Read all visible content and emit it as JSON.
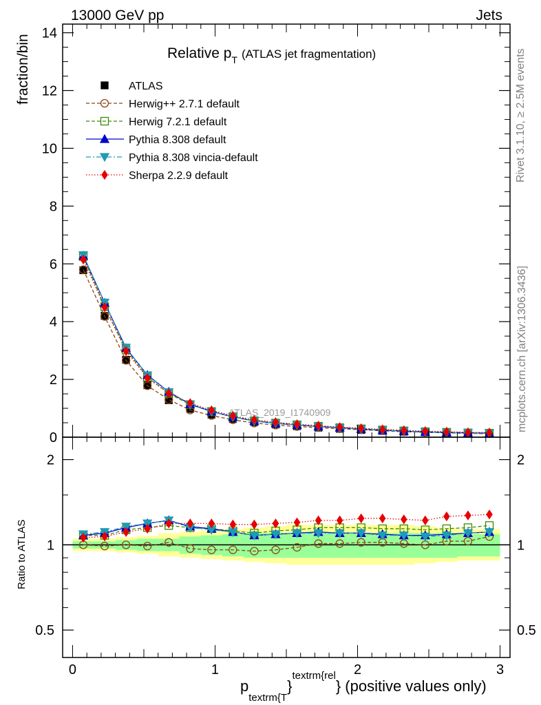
{
  "header": {
    "process": "13000 GeV pp",
    "category": "Jets",
    "rivet_info": "Rivet 3.1.10, ≥ 2.5M events",
    "mcplots_info": "mcplots.cern.ch [arXiv:1306.3436]",
    "analysis_id": "ATLAS_2019_I1740909"
  },
  "title": {
    "main": "Relative p",
    "sub": "T",
    "suffix": "(ATLAS jet fragmentation)"
  },
  "axes": {
    "top_ylabel": "fraction/bin",
    "bottom_ylabel": "Ratio to ATLAS",
    "xlabel_p": "p",
    "xlabel_sub": "textrm{T",
    "xlabel_brace": "}",
    "xlabel_sup": "textrm{rel",
    "xlabel_tail": "} (positive values only)"
  },
  "colors": {
    "atlas": "#000000",
    "herwigpp": "#8b4513",
    "herwig7": "#3a8a00",
    "pythia": "#0000cc",
    "vincia": "#1e9bb5",
    "sherpa": "#e80000",
    "band_yellow": "#ffff99",
    "band_green": "#99ff99"
  },
  "chart_data": [
    {
      "type": "line",
      "panel": "main",
      "title": "Relative pT (ATLAS jet fragmentation)",
      "xlabel": "p_T^rel (positive values only)",
      "ylabel": "fraction/bin",
      "xlim": [
        -0.07,
        3.07
      ],
      "ylim": [
        0,
        14.3
      ],
      "xticks": [
        0,
        1,
        2,
        3
      ],
      "yticks": [
        0,
        2,
        4,
        6,
        8,
        10,
        12,
        14
      ],
      "x": [
        0.075,
        0.225,
        0.375,
        0.525,
        0.675,
        0.825,
        0.975,
        1.125,
        1.275,
        1.425,
        1.575,
        1.725,
        1.875,
        2.025,
        2.175,
        2.325,
        2.475,
        2.625,
        2.775,
        2.925
      ],
      "series": [
        {
          "name": "ATLAS",
          "key": "atlas",
          "marker": "square",
          "values": [
            5.78,
            4.2,
            2.68,
            1.8,
            1.28,
            0.98,
            0.78,
            0.63,
            0.52,
            0.44,
            0.38,
            0.33,
            0.29,
            0.25,
            0.22,
            0.19,
            0.17,
            0.15,
            0.13,
            0.12
          ]
        },
        {
          "name": "Herwig++ 2.7.1 default",
          "key": "herwigpp",
          "marker": "circle",
          "values": [
            5.8,
            4.18,
            2.66,
            1.78,
            1.3,
            0.94,
            0.75,
            0.6,
            0.49,
            0.42,
            0.37,
            0.33,
            0.29,
            0.26,
            0.22,
            0.19,
            0.17,
            0.15,
            0.13,
            0.12
          ]
        },
        {
          "name": "Herwig 7.2.1 default",
          "key": "herwig7",
          "marker": "opensquare",
          "values": [
            6.25,
            4.52,
            3.02,
            2.08,
            1.51,
            1.13,
            0.89,
            0.71,
            0.57,
            0.49,
            0.43,
            0.38,
            0.33,
            0.29,
            0.25,
            0.22,
            0.19,
            0.17,
            0.15,
            0.14
          ]
        },
        {
          "name": "Pythia 8.308 default",
          "key": "pythia",
          "marker": "triangle",
          "values": [
            6.28,
            4.65,
            3.08,
            2.15,
            1.57,
            1.14,
            0.89,
            0.7,
            0.56,
            0.48,
            0.42,
            0.37,
            0.33,
            0.28,
            0.24,
            0.21,
            0.18,
            0.16,
            0.15,
            0.14
          ]
        },
        {
          "name": "Pythia 8.308 vincia-default",
          "key": "vincia",
          "marker": "invtriangle",
          "values": [
            6.3,
            4.66,
            3.1,
            2.14,
            1.56,
            1.13,
            0.88,
            0.7,
            0.56,
            0.48,
            0.42,
            0.37,
            0.32,
            0.28,
            0.24,
            0.21,
            0.18,
            0.16,
            0.15,
            0.13
          ]
        },
        {
          "name": "Sherpa 2.2.9 default",
          "key": "sherpa",
          "marker": "diamond",
          "values": [
            6.15,
            4.5,
            2.98,
            2.05,
            1.52,
            1.18,
            0.93,
            0.74,
            0.6,
            0.52,
            0.45,
            0.4,
            0.35,
            0.31,
            0.27,
            0.24,
            0.21,
            0.19,
            0.17,
            0.16
          ]
        }
      ]
    },
    {
      "type": "line",
      "panel": "ratio",
      "ylabel": "Ratio to ATLAS",
      "yscale": "log",
      "ylim": [
        0.4,
        2.4
      ],
      "yticks": [
        0.5,
        1,
        2
      ],
      "x": [
        0.075,
        0.225,
        0.375,
        0.525,
        0.675,
        0.825,
        0.975,
        1.125,
        1.275,
        1.425,
        1.575,
        1.725,
        1.875,
        2.025,
        2.175,
        2.325,
        2.475,
        2.625,
        2.775,
        2.925
      ],
      "band_green": {
        "lo": [
          0.97,
          0.97,
          0.96,
          0.95,
          0.95,
          0.93,
          0.92,
          0.91,
          0.9,
          0.9,
          0.9,
          0.9,
          0.9,
          0.9,
          0.9,
          0.9,
          0.9,
          0.9,
          0.91,
          0.91
        ],
        "hi": [
          1.03,
          1.03,
          1.04,
          1.05,
          1.05,
          1.07,
          1.08,
          1.09,
          1.1,
          1.1,
          1.1,
          1.1,
          1.1,
          1.1,
          1.1,
          1.1,
          1.1,
          1.1,
          1.09,
          1.09
        ]
      },
      "band_yellow": {
        "lo": [
          0.95,
          0.95,
          0.94,
          0.93,
          0.91,
          0.9,
          0.89,
          0.88,
          0.87,
          0.86,
          0.85,
          0.85,
          0.85,
          0.85,
          0.85,
          0.85,
          0.86,
          0.87,
          0.88,
          0.88
        ]
      },
      "series": [
        {
          "name": "Herwig++ 2.7.1 default",
          "key": "herwigpp",
          "marker": "circle",
          "values": [
            1.0,
            0.99,
            1.0,
            0.99,
            1.02,
            0.97,
            0.96,
            0.96,
            0.95,
            0.96,
            0.98,
            1.01,
            1.01,
            1.02,
            1.02,
            1.01,
            1.0,
            1.03,
            1.03,
            1.07
          ]
        },
        {
          "name": "Herwig 7.2.1 default",
          "key": "herwig7",
          "marker": "opensquare",
          "values": [
            1.08,
            1.08,
            1.13,
            1.15,
            1.17,
            1.15,
            1.14,
            1.12,
            1.1,
            1.12,
            1.13,
            1.15,
            1.15,
            1.15,
            1.14,
            1.14,
            1.13,
            1.14,
            1.15,
            1.17
          ]
        },
        {
          "name": "Pythia 8.308 default",
          "key": "pythia",
          "marker": "triangle",
          "values": [
            1.08,
            1.1,
            1.15,
            1.19,
            1.22,
            1.16,
            1.14,
            1.11,
            1.08,
            1.09,
            1.1,
            1.11,
            1.1,
            1.1,
            1.09,
            1.08,
            1.08,
            1.09,
            1.1,
            1.11
          ]
        },
        {
          "name": "Pythia 8.308 vincia-default",
          "key": "vincia",
          "marker": "invtriangle",
          "values": [
            1.09,
            1.11,
            1.16,
            1.19,
            1.22,
            1.15,
            1.13,
            1.11,
            1.08,
            1.09,
            1.1,
            1.1,
            1.1,
            1.1,
            1.08,
            1.08,
            1.07,
            1.08,
            1.1,
            1.11
          ]
        },
        {
          "name": "Sherpa 2.2.9 default",
          "key": "sherpa",
          "marker": "diamond",
          "values": [
            1.06,
            1.07,
            1.11,
            1.14,
            1.19,
            1.19,
            1.19,
            1.18,
            1.18,
            1.19,
            1.2,
            1.22,
            1.22,
            1.24,
            1.24,
            1.23,
            1.22,
            1.26,
            1.27,
            1.28
          ]
        }
      ]
    }
  ]
}
